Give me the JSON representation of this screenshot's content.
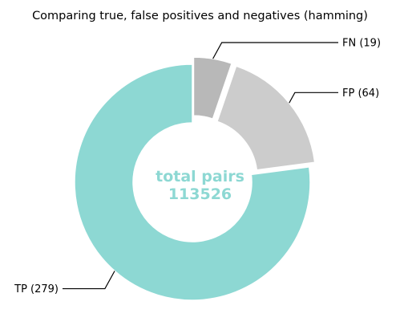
{
  "chart_data": {
    "type": "pie",
    "variant": "donut",
    "title": "Comparing true, false positives and negatives (hamming)",
    "center_label": {
      "line1": "total pairs",
      "line2": "113526",
      "color": "#8dd8d3"
    },
    "slices": [
      {
        "name": "FN",
        "value": 19,
        "label": "FN (19)",
        "color": "#b8b8b8",
        "exploded": true
      },
      {
        "name": "FP",
        "value": 64,
        "label": "FP (64)",
        "color": "#cccccc",
        "exploded": true
      },
      {
        "name": "TP",
        "value": 279,
        "label": "TP (279)",
        "color": "#8dd8d3",
        "exploded": false
      }
    ],
    "start_angle_deg": 90,
    "direction": "clockwise",
    "legend": "none"
  }
}
